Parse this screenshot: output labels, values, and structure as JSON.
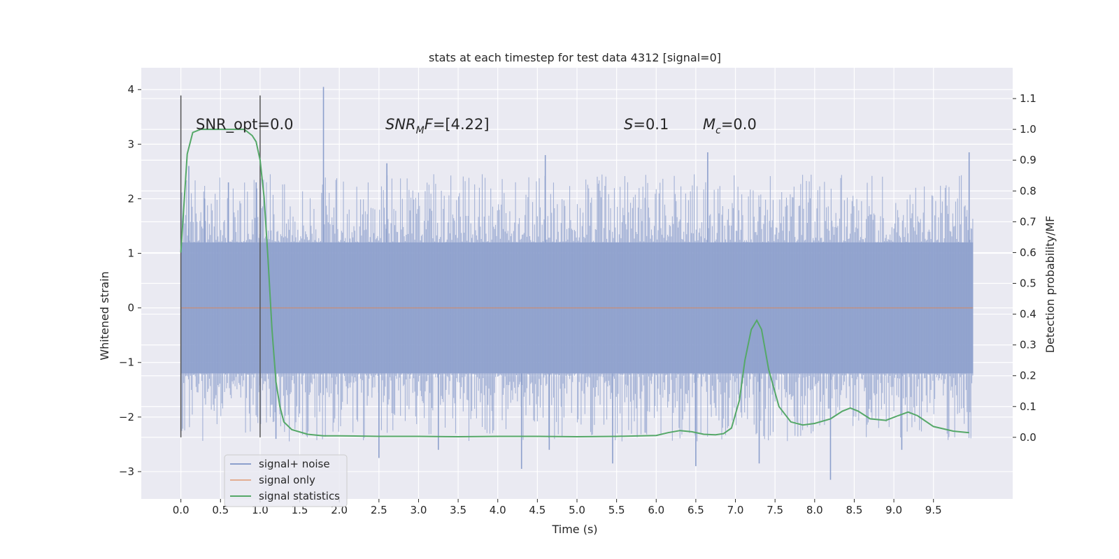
{
  "chart_data": {
    "type": "line",
    "title": "stats at each timestep for test data 4312 [signal=0]",
    "xlabel": "Time (s)",
    "ylabel": "Whitened strain",
    "ylabel_right": "Detection probability/MF",
    "xlim": [
      -0.5,
      10.5
    ],
    "ylim": [
      -3.5,
      4.4
    ],
    "ylim_right": [
      -0.2,
      1.2
    ],
    "x_ticks": [
      "0.0",
      "0.5",
      "1.0",
      "1.5",
      "2.0",
      "2.5",
      "3.0",
      "3.5",
      "4.0",
      "4.5",
      "5.0",
      "5.5",
      "6.0",
      "6.5",
      "7.0",
      "7.5",
      "8.0",
      "8.5",
      "9.0",
      "9.5"
    ],
    "y_ticks": [
      "−3",
      "−2",
      "−1",
      "0",
      "1",
      "2",
      "3",
      "4"
    ],
    "y_ticks_right": [
      "0.0",
      "0.1",
      "0.2",
      "0.3",
      "0.4",
      "0.5",
      "0.6",
      "0.7",
      "0.8",
      "0.9",
      "1.0",
      "1.1"
    ],
    "grid": true,
    "legend_position": "lower-left",
    "annotations": {
      "snr_opt": "SNR_opt=0.0",
      "snr_mf": "=[4.22]",
      "s": "=0.1",
      "mc": "=0.0"
    },
    "colors": {
      "noise": "#8c9fcc",
      "signal_only": "#dd8452",
      "statistics": "#55a868",
      "background": "#eaeaf2"
    },
    "window_markers_x": [
      0.0,
      1.0
    ],
    "series": [
      {
        "name": "signal+ noise",
        "style": "dense noise band",
        "x_range": [
          0.0,
          10.0
        ],
        "band_lower": -1.2,
        "band_upper": 1.2,
        "max_peak": {
          "x": 1.8,
          "y": 4.05
        },
        "min_peak": {
          "x": 8.2,
          "y": -3.15
        },
        "spikes": [
          [
            0.1,
            2.6
          ],
          [
            0.3,
            2.0
          ],
          [
            0.6,
            2.3
          ],
          [
            0.95,
            2.3
          ],
          [
            1.8,
            4.05
          ],
          [
            2.6,
            2.65
          ],
          [
            4.6,
            2.8
          ],
          [
            6.65,
            2.85
          ],
          [
            9.95,
            2.85
          ],
          [
            1.2,
            -2.4
          ],
          [
            2.5,
            -2.75
          ],
          [
            3.25,
            -2.6
          ],
          [
            4.3,
            -2.95
          ],
          [
            4.65,
            -2.6
          ],
          [
            5.45,
            -2.85
          ],
          [
            6.5,
            -2.9
          ],
          [
            7.3,
            -2.85
          ],
          [
            8.2,
            -3.15
          ],
          [
            9.1,
            -2.6
          ]
        ]
      },
      {
        "name": "signal only",
        "x": [
          0.0,
          10.0
        ],
        "y": [
          0.0,
          0.0
        ]
      },
      {
        "name": "signal statistics",
        "axis": "right",
        "x": [
          0.0,
          0.08,
          0.15,
          0.25,
          0.4,
          0.6,
          0.8,
          0.9,
          0.95,
          1.0,
          1.05,
          1.1,
          1.15,
          1.2,
          1.25,
          1.3,
          1.4,
          1.6,
          1.8,
          2.0,
          2.5,
          3.0,
          3.5,
          4.0,
          4.5,
          5.0,
          5.5,
          6.0,
          6.15,
          6.3,
          6.45,
          6.6,
          6.75,
          6.85,
          6.95,
          7.05,
          7.12,
          7.2,
          7.27,
          7.33,
          7.42,
          7.55,
          7.7,
          7.85,
          8.0,
          8.2,
          8.35,
          8.45,
          8.55,
          8.7,
          8.9,
          9.05,
          9.18,
          9.3,
          9.5,
          9.75,
          9.95
        ],
        "y": [
          0.6,
          0.92,
          0.99,
          1.0,
          1.0,
          1.0,
          1.0,
          0.98,
          0.96,
          0.9,
          0.78,
          0.58,
          0.35,
          0.18,
          0.1,
          0.05,
          0.025,
          0.01,
          0.005,
          0.005,
          0.003,
          0.003,
          0.002,
          0.003,
          0.003,
          0.002,
          0.003,
          0.006,
          0.015,
          0.022,
          0.018,
          0.01,
          0.008,
          0.012,
          0.03,
          0.12,
          0.25,
          0.35,
          0.38,
          0.35,
          0.22,
          0.1,
          0.05,
          0.04,
          0.045,
          0.06,
          0.085,
          0.095,
          0.085,
          0.06,
          0.055,
          0.07,
          0.082,
          0.07,
          0.035,
          0.02,
          0.015
        ]
      }
    ]
  }
}
